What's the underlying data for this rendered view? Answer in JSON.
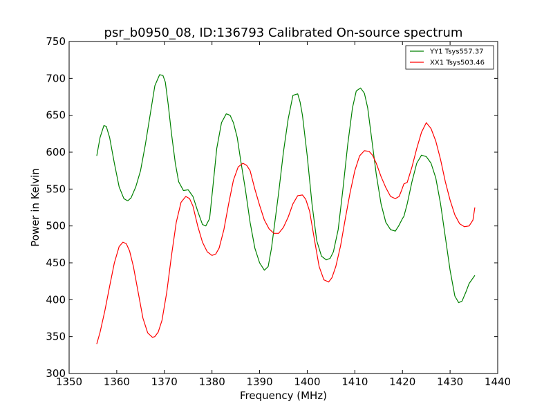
{
  "chart_data": {
    "type": "line",
    "title": "psr_b0950_08, ID:136793 Calibrated On-source spectrum",
    "xlabel": "Frequency (MHz)",
    "ylabel": "Power in Kelvin",
    "xlim": [
      1350,
      1440
    ],
    "ylim": [
      300,
      750
    ],
    "xticks": [
      1350,
      1360,
      1370,
      1380,
      1390,
      1400,
      1410,
      1420,
      1430,
      1440
    ],
    "yticks": [
      300,
      350,
      400,
      450,
      500,
      550,
      600,
      650,
      700,
      750
    ],
    "grid": false,
    "legend_position": "top-right",
    "series": [
      {
        "name": "YY1 Tsys557.37",
        "color": "#008000",
        "x": [
          1355.8,
          1356.5,
          1357.3,
          1357.8,
          1358.5,
          1359.5,
          1360.5,
          1361.5,
          1362.3,
          1363.0,
          1364.0,
          1365.0,
          1366.0,
          1367.0,
          1368.0,
          1369.0,
          1369.7,
          1370.2,
          1370.8,
          1371.5,
          1372.3,
          1373.0,
          1374.0,
          1375.0,
          1376.0,
          1377.0,
          1378.0,
          1378.7,
          1379.5,
          1380.3,
          1381.0,
          1382.0,
          1383.0,
          1383.8,
          1384.5,
          1385.3,
          1386.0,
          1387.0,
          1388.0,
          1389.0,
          1390.0,
          1391.0,
          1391.8,
          1392.5,
          1393.0,
          1394.0,
          1395.0,
          1396.0,
          1397.0,
          1398.0,
          1398.5,
          1399.0,
          1400.0,
          1401.0,
          1402.0,
          1403.0,
          1404.0,
          1404.8,
          1405.5,
          1406.5,
          1407.5,
          1408.5,
          1409.5,
          1410.3,
          1411.2,
          1412.0,
          1412.7,
          1413.5,
          1414.5,
          1415.5,
          1416.5,
          1417.5,
          1418.5,
          1419.2,
          1420.0,
          1420.3,
          1421.0,
          1422.0,
          1423.0,
          1424.0,
          1425.0,
          1426.0,
          1427.0,
          1428.0,
          1429.0,
          1430.0,
          1431.0,
          1431.8,
          1432.5,
          1433.3,
          1434.0,
          1435.2
        ],
        "y": [
          595,
          620,
          636,
          635,
          620,
          585,
          553,
          537,
          534,
          538,
          553,
          575,
          610,
          650,
          690,
          705,
          704,
          695,
          665,
          625,
          585,
          560,
          548,
          549,
          540,
          520,
          502,
          500,
          510,
          560,
          605,
          640,
          652,
          650,
          640,
          620,
          590,
          550,
          505,
          470,
          450,
          440,
          445,
          470,
          495,
          545,
          600,
          645,
          677,
          679,
          668,
          650,
          595,
          530,
          480,
          459,
          454,
          456,
          465,
          495,
          550,
          610,
          660,
          683,
          687,
          680,
          660,
          620,
          570,
          530,
          505,
          495,
          493,
          500,
          510,
          513,
          530,
          560,
          585,
          596,
          594,
          585,
          565,
          530,
          485,
          440,
          405,
          396,
          398,
          410,
          422,
          433
        ]
      },
      {
        "name": "XX1 Tsys503.46",
        "color": "#ff0000",
        "x": [
          1355.8,
          1356.5,
          1357.5,
          1358.5,
          1359.5,
          1360.5,
          1361.3,
          1362.0,
          1362.7,
          1363.5,
          1364.5,
          1365.5,
          1366.5,
          1367.5,
          1368.0,
          1368.7,
          1369.5,
          1370.5,
          1371.5,
          1372.5,
          1373.5,
          1374.5,
          1375.3,
          1376.0,
          1377.0,
          1378.0,
          1379.0,
          1380.0,
          1380.8,
          1381.5,
          1382.5,
          1383.5,
          1384.5,
          1385.5,
          1386.5,
          1387.3,
          1388.0,
          1389.0,
          1390.0,
          1391.0,
          1392.0,
          1393.0,
          1394.0,
          1395.0,
          1396.0,
          1397.0,
          1398.0,
          1399.0,
          1399.7,
          1400.5,
          1401.5,
          1402.5,
          1403.5,
          1404.5,
          1405.2,
          1406.0,
          1407.0,
          1408.0,
          1409.0,
          1410.0,
          1411.0,
          1412.0,
          1413.0,
          1413.7,
          1414.5,
          1415.5,
          1416.5,
          1417.5,
          1418.5,
          1419.3,
          1419.8,
          1420.3,
          1421.0,
          1422.0,
          1423.0,
          1424.0,
          1425.0,
          1426.0,
          1427.0,
          1428.0,
          1429.0,
          1430.0,
          1431.0,
          1432.0,
          1433.0,
          1434.0,
          1434.8,
          1435.2
        ],
        "y": [
          340,
          356,
          385,
          418,
          450,
          472,
          478,
          476,
          466,
          445,
          410,
          375,
          355,
          349,
          350,
          356,
          372,
          410,
          460,
          505,
          532,
          540,
          537,
          527,
          500,
          478,
          465,
          460,
          462,
          470,
          495,
          530,
          562,
          580,
          585,
          582,
          575,
          550,
          528,
          508,
          496,
          490,
          490,
          498,
          512,
          530,
          541,
          542,
          536,
          520,
          482,
          445,
          427,
          424,
          430,
          445,
          473,
          510,
          545,
          575,
          595,
          602,
          601,
          596,
          585,
          567,
          552,
          540,
          537,
          540,
          548,
          557,
          559,
          580,
          605,
          627,
          640,
          632,
          615,
          590,
          560,
          535,
          515,
          503,
          499,
          500,
          508,
          525
        ]
      }
    ]
  }
}
